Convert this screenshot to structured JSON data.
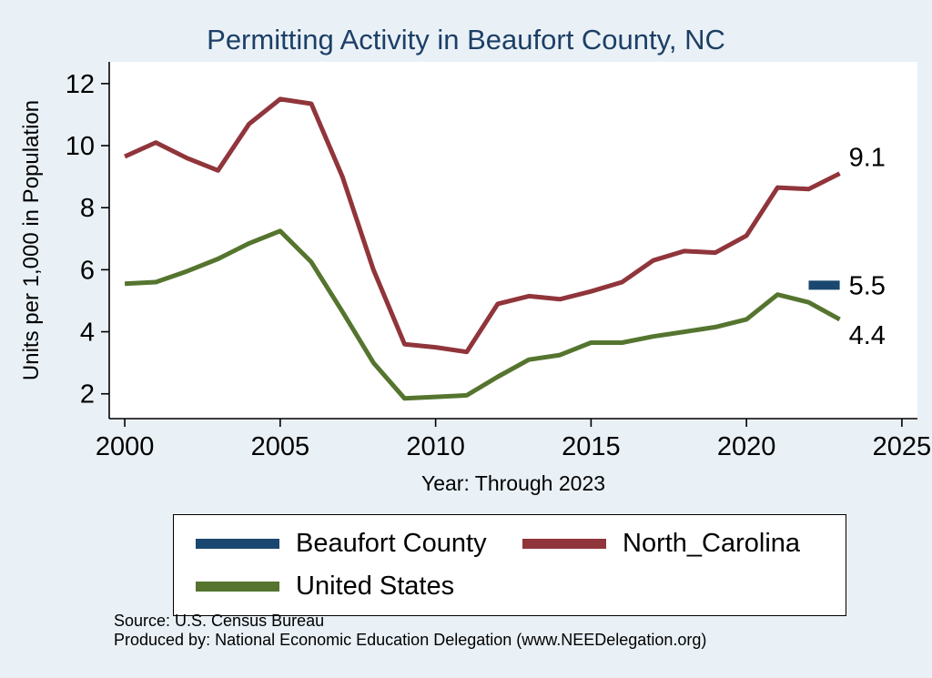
{
  "page": {
    "background_color": "#e9f1f7",
    "title_color": "#1d3f66"
  },
  "chart_data": {
    "type": "line",
    "title": "Permitting Activity in Beaufort County, NC",
    "xlabel": "Year: Through 2023",
    "ylabel": "Units per 1,000 in Population",
    "xlim": [
      1999.5,
      2025.5
    ],
    "ylim": [
      1.2,
      12.7
    ],
    "x_ticks": [
      2000,
      2005,
      2010,
      2015,
      2020,
      2025
    ],
    "y_ticks": [
      2,
      4,
      6,
      8,
      10,
      12
    ],
    "grid": false,
    "legend_position": "bottom",
    "plot_background": "#ffffff",
    "series": [
      {
        "name": "Beaufort County",
        "color": "#1a476f",
        "line_width": 10,
        "x": [
          2022,
          2023
        ],
        "values": [
          5.5,
          5.5
        ],
        "end_label": "5.5",
        "end_label_dy": 0
      },
      {
        "name": "North_Carolina",
        "color": "#90353b",
        "line_width": 5,
        "x": [
          2000,
          2001,
          2002,
          2003,
          2004,
          2005,
          2006,
          2007,
          2008,
          2009,
          2010,
          2011,
          2012,
          2013,
          2014,
          2015,
          2016,
          2017,
          2018,
          2019,
          2020,
          2021,
          2022,
          2023
        ],
        "values": [
          9.65,
          10.1,
          9.6,
          9.2,
          10.7,
          11.5,
          11.35,
          9.0,
          6.0,
          3.6,
          3.5,
          3.35,
          4.9,
          5.15,
          5.05,
          5.3,
          5.6,
          6.3,
          6.6,
          6.55,
          7.1,
          8.65,
          8.6,
          9.1
        ],
        "end_label": "9.1",
        "end_label_dy": -18
      },
      {
        "name": "United States",
        "color": "#55752f",
        "line_width": 5,
        "x": [
          2000,
          2001,
          2002,
          2003,
          2004,
          2005,
          2006,
          2007,
          2008,
          2009,
          2010,
          2011,
          2012,
          2013,
          2014,
          2015,
          2016,
          2017,
          2018,
          2019,
          2020,
          2021,
          2022,
          2023
        ],
        "values": [
          5.55,
          5.6,
          5.95,
          6.35,
          6.85,
          7.25,
          6.25,
          4.65,
          3.0,
          1.85,
          1.9,
          1.95,
          2.55,
          3.1,
          3.25,
          3.65,
          3.65,
          3.85,
          4.0,
          4.15,
          4.4,
          5.2,
          4.95,
          4.4
        ],
        "end_label": "4.4",
        "end_label_dy": 17
      }
    ]
  },
  "footer": {
    "source": "Source: U.S. Census Bureau",
    "produced_by": "Produced by: National Economic Education Delegation (www.NEEDelegation.org)"
  }
}
